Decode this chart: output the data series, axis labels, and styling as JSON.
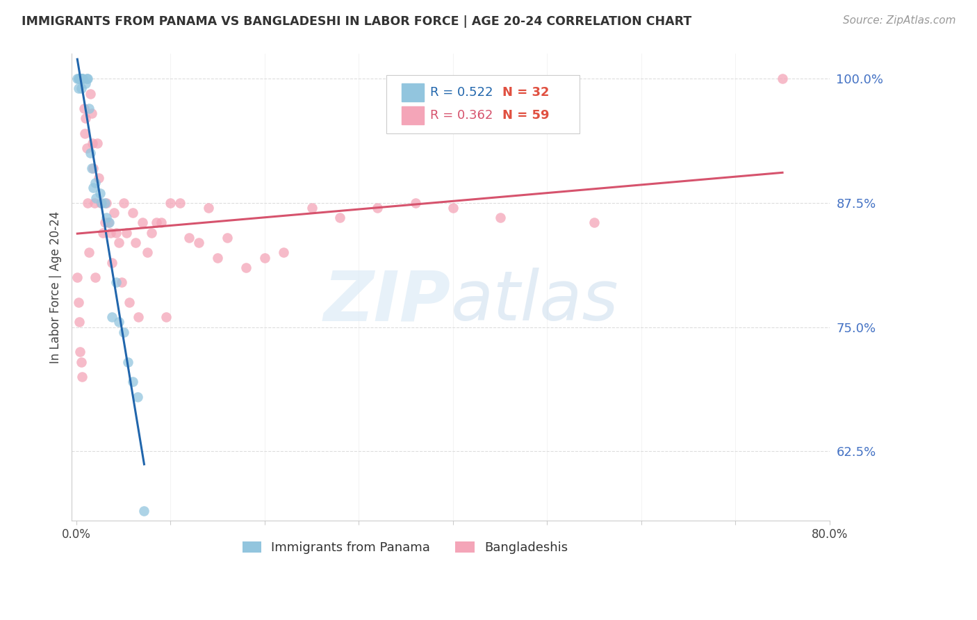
{
  "title": "IMMIGRANTS FROM PANAMA VS BANGLADESHI IN LABOR FORCE | AGE 20-24 CORRELATION CHART",
  "source": "Source: ZipAtlas.com",
  "ylabel": "In Labor Force | Age 20-24",
  "xlim": [
    -0.005,
    0.8
  ],
  "ylim": [
    0.555,
    1.025
  ],
  "xticks": [
    0.0,
    0.1,
    0.2,
    0.3,
    0.4,
    0.5,
    0.6,
    0.7,
    0.8
  ],
  "xticklabels": [
    "0.0%",
    "",
    "",
    "",
    "",
    "",
    "",
    "",
    "80.0%"
  ],
  "ytick_positions": [
    0.625,
    0.75,
    0.875,
    1.0
  ],
  "yticklabels": [
    "62.5%",
    "75.0%",
    "87.5%",
    "100.0%"
  ],
  "watermark_zip": "ZIP",
  "watermark_atlas": "atlas",
  "blue_color": "#92c5de",
  "blue_line_color": "#2166ac",
  "pink_color": "#f4a5b8",
  "pink_line_color": "#d6536d",
  "label1": "Immigrants from Panama",
  "label2": "Bangladeshis",
  "grid_color": "#dddddd",
  "background_color": "#ffffff",
  "title_color": "#333333",
  "source_color": "#999999",
  "ytick_color": "#4472c4",
  "legend_r1": "R = 0.522",
  "legend_n1": "N = 32",
  "legend_r2": "R = 0.362",
  "legend_n2": "N = 59"
}
